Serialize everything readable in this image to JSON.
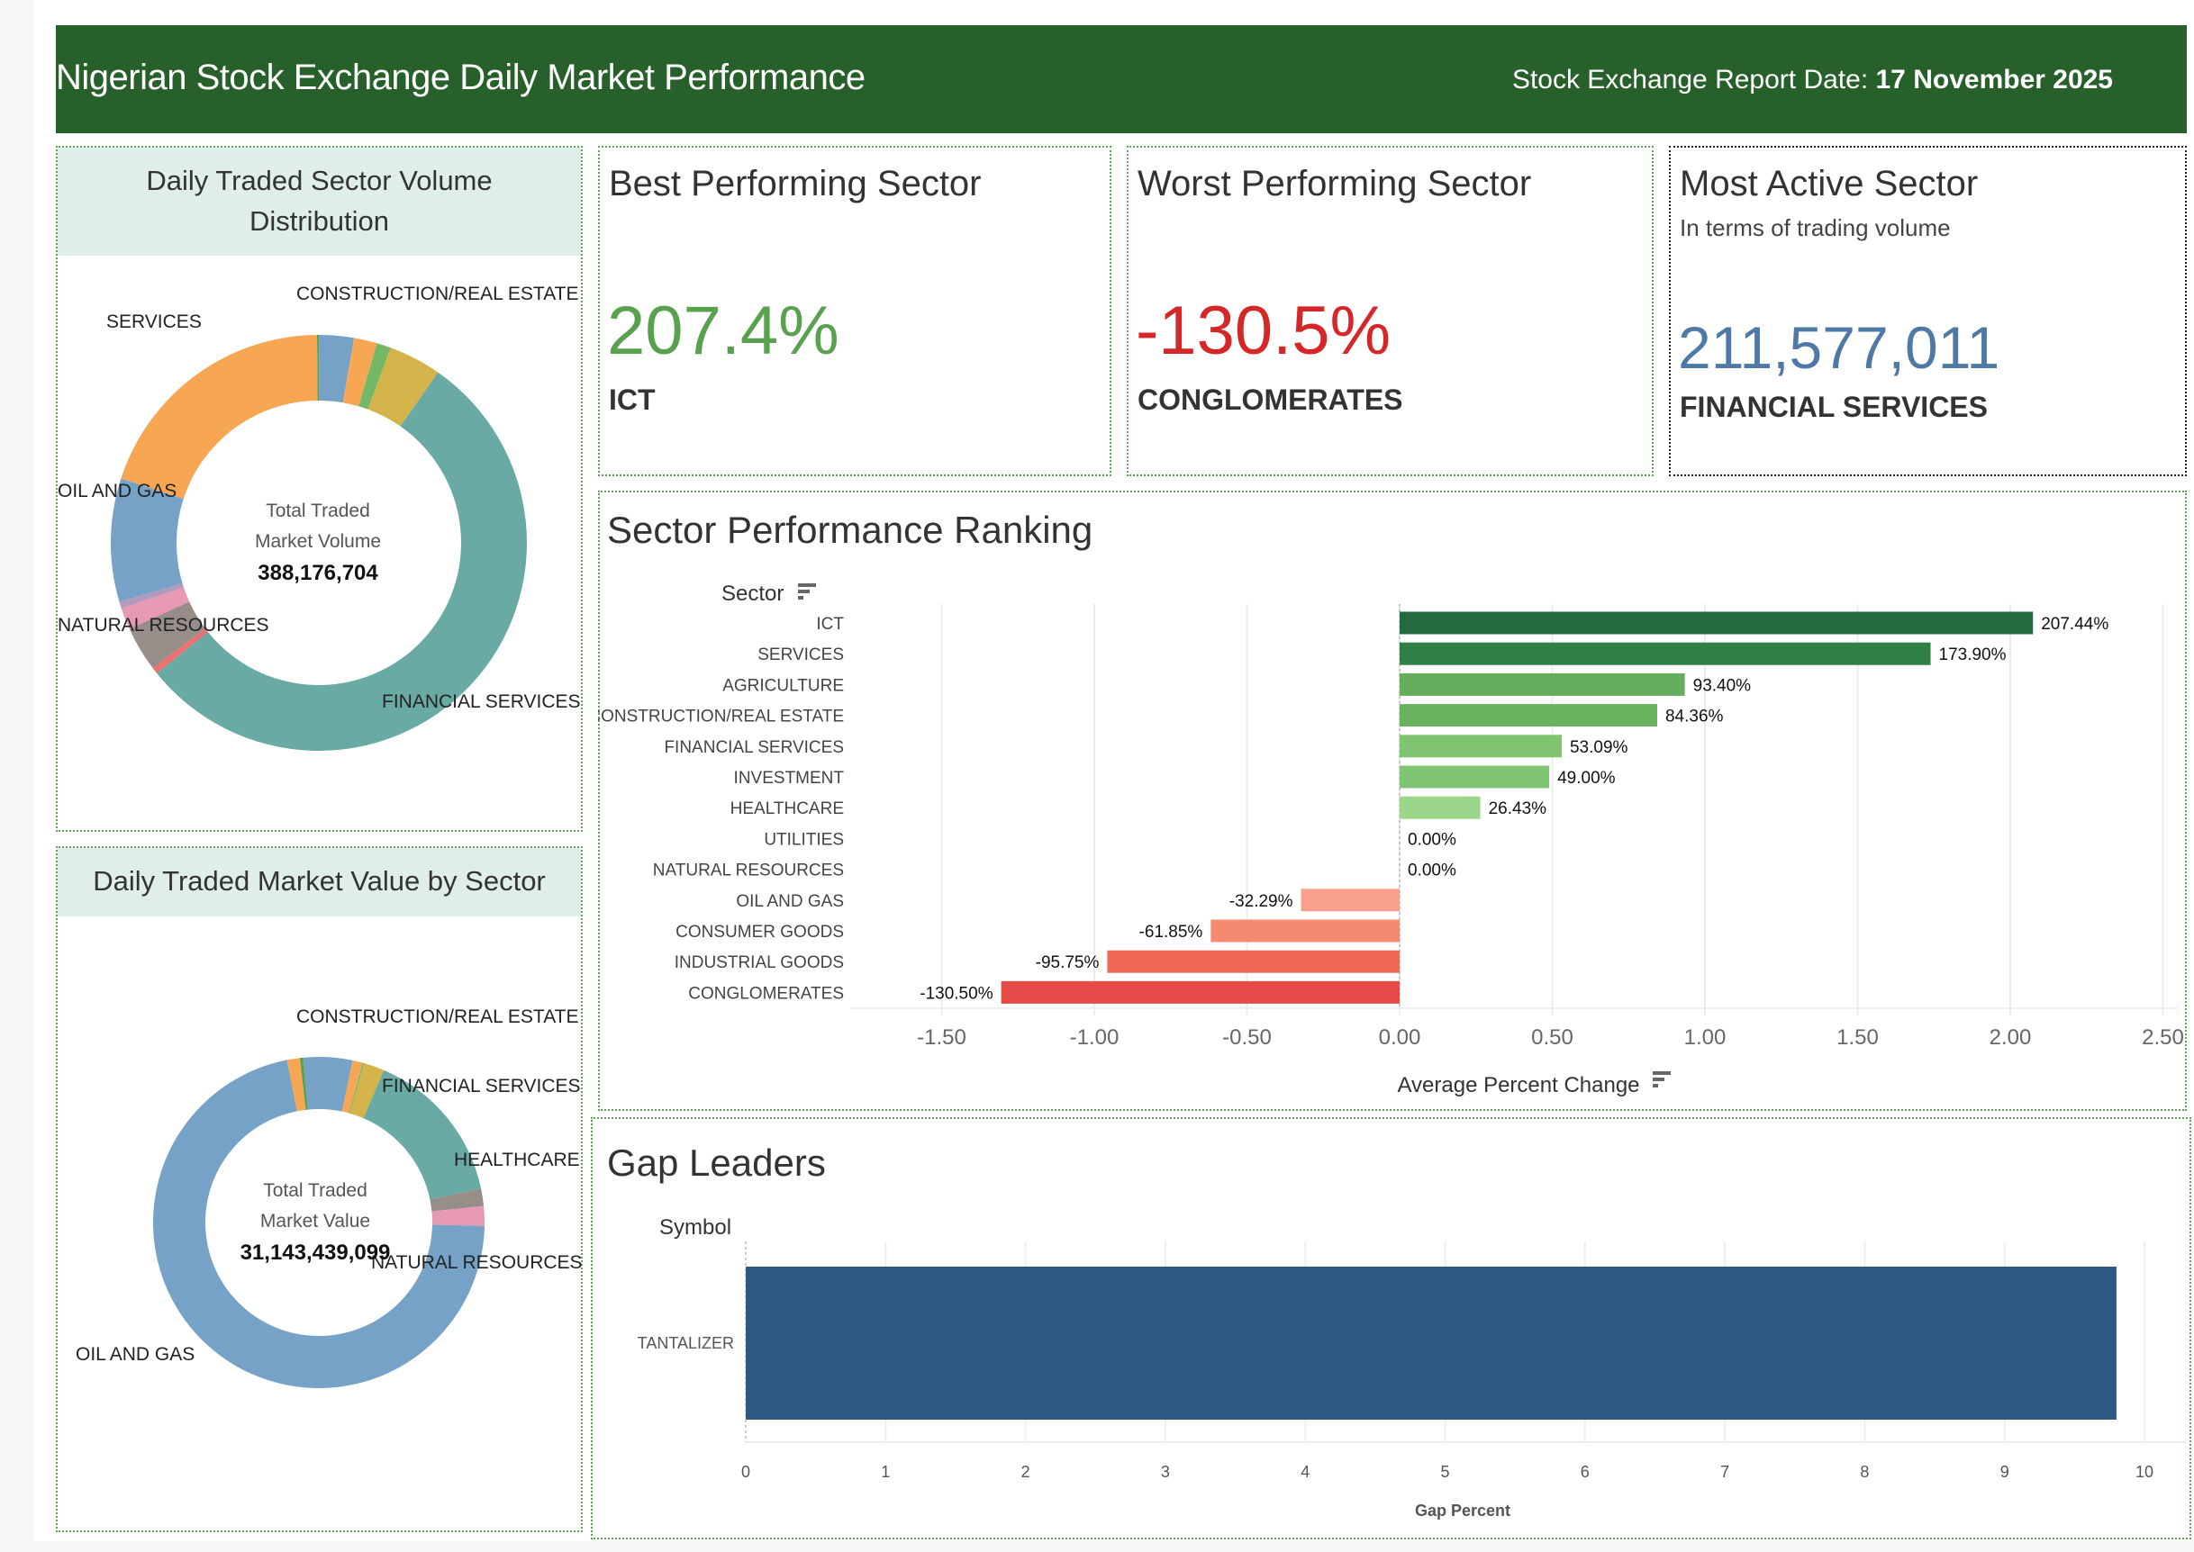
{
  "header": {
    "title": "Nigerian Stock Exchange Daily Market Performance",
    "date_label": "Stock Exchange Report Date:",
    "date_value": "17 November 2025",
    "color": "#28602b"
  },
  "volume_panel": {
    "title": "Daily Traded Sector Volume Distribution",
    "center_line1": "Total Traded",
    "center_line2": "Market Volume",
    "center_value": "388,176,704"
  },
  "value_panel": {
    "title": "Daily Traded Market Value by Sector",
    "center_line1": "Total Traded",
    "center_line2": "Market Value",
    "center_value": "31,143,439,099"
  },
  "kpis": {
    "best": {
      "title": "Best Performing Sector",
      "value": "207.4%",
      "sector": "ICT",
      "color": "#59a14f"
    },
    "worst": {
      "title": "Worst Performing Sector",
      "value": "-130.5%",
      "sector": "CONGLOMERATES",
      "color": "#d62728"
    },
    "active": {
      "title": "Most Active Sector",
      "subtitle": "In terms of trading volume",
      "value": "211,577,011",
      "sector": "FINANCIAL SERVICES",
      "color": "#4e79a7"
    }
  },
  "ranking": {
    "title": "Sector Performance Ranking"
  },
  "gap": {
    "title": "Gap Leaders"
  },
  "chart_data": [
    {
      "type": "pie",
      "title": "Daily Traded Sector Volume Distribution",
      "unit": "percent share (estimated)",
      "slices": [
        {
          "label": "",
          "value": 0.15,
          "color": "#59a14f"
        },
        {
          "label": "",
          "value": 2.7,
          "color": "#76a2c8"
        },
        {
          "label": "",
          "value": 1.8,
          "color": "#f7a754"
        },
        {
          "label": "",
          "value": 1.1,
          "color": "#74b867"
        },
        {
          "label": "CONSTRUCTION/REAL ESTATE",
          "value": 4.1,
          "color": "#d4b34b"
        },
        {
          "label": "FINANCIAL SERVICES",
          "value": 54.5,
          "color": "#6aaaa4"
        },
        {
          "label": "",
          "value": 0.5,
          "color": "#ea7272"
        },
        {
          "label": "NATURAL RESOURCES",
          "value": 3.5,
          "color": "#978d89"
        },
        {
          "label": "",
          "value": 1.7,
          "color": "#e798b3"
        },
        {
          "label": "",
          "value": 0.5,
          "color": "#b39abd"
        },
        {
          "label": "OIL AND GAS",
          "value": 9.6,
          "color": "#76a2c8"
        },
        {
          "label": "SERVICES",
          "value": 19.85,
          "color": "#f7a754"
        }
      ]
    },
    {
      "type": "pie",
      "title": "Daily Traded Market Value by Sector",
      "unit": "percent share (estimated)",
      "slices": [
        {
          "label": "",
          "value": 4.8,
          "color": "#76a2c8"
        },
        {
          "label": "",
          "value": 1.0,
          "color": "#f7a754"
        },
        {
          "label": "",
          "value": 0.15,
          "color": "#74b867"
        },
        {
          "label": "CONSTRUCTION/REAL ESTATE",
          "value": 2.0,
          "color": "#d4b34b"
        },
        {
          "label": "FINANCIAL SERVICES",
          "value": 15.3,
          "color": "#6aaaa4"
        },
        {
          "label": "HEALTHCARE",
          "value": 1.7,
          "color": "#978d89"
        },
        {
          "label": "NATURAL RESOURCES",
          "value": 1.9,
          "color": "#e798b3"
        },
        {
          "label": "OIL AND GAS",
          "value": 71.6,
          "color": "#76a2c8"
        },
        {
          "label": "",
          "value": 1.25,
          "color": "#f7a754"
        },
        {
          "label": "",
          "value": 0.3,
          "color": "#59a14f"
        }
      ]
    },
    {
      "type": "bar",
      "orientation": "horizontal",
      "title": "Sector Performance Ranking",
      "ylabel": "Sector",
      "xlabel": "Average Percent Change",
      "xlim": [
        -1.8,
        2.55
      ],
      "xticks": [
        "-1.50",
        "-1.00",
        "-0.50",
        "0.00",
        "0.50",
        "1.00",
        "1.50",
        "2.00",
        "2.50"
      ],
      "xtick_values": [
        -1.5,
        -1.0,
        -0.5,
        0,
        0.5,
        1.0,
        1.5,
        2.0,
        2.5
      ],
      "categories": [
        "ICT",
        "SERVICES",
        "AGRICULTURE",
        "CONSTRUCTION/REAL ESTATE",
        "FINANCIAL SERVICES",
        "INVESTMENT",
        "HEALTHCARE",
        "UTILITIES",
        "NATURAL RESOURCES",
        "OIL AND GAS",
        "CONSUMER GOODS",
        "INDUSTRIAL GOODS",
        "CONGLOMERATES"
      ],
      "values": [
        2.0744,
        1.739,
        0.934,
        0.8436,
        0.5309,
        0.49,
        0.2643,
        0,
        0,
        -0.3229,
        -0.6185,
        -0.9575,
        -1.305
      ],
      "labels": [
        "207.44%",
        "173.90%",
        "93.40%",
        "84.36%",
        "53.09%",
        "49.00%",
        "26.43%",
        "0.00%",
        "0.00%",
        "-32.29%",
        "-61.85%",
        "-95.75%",
        "-130.50%"
      ],
      "colors": [
        "#236a3e",
        "#2e8045",
        "#64ad5c",
        "#6ab25f",
        "#7fc46f",
        "#80c573",
        "#9bd68a",
        "#9bd68a",
        "#9bd68a",
        "#f8a08c",
        "#f58a72",
        "#ef6954",
        "#e44a46"
      ],
      "grid": true
    },
    {
      "type": "bar",
      "orientation": "horizontal",
      "title": "Gap Leaders",
      "ylabel": "Symbol",
      "xlabel": "Gap Percent",
      "xlim": [
        0,
        10.3
      ],
      "xticks": [
        "0",
        "1",
        "2",
        "3",
        "4",
        "5",
        "6",
        "7",
        "8",
        "9",
        "10"
      ],
      "xtick_values": [
        0,
        1,
        2,
        3,
        4,
        5,
        6,
        7,
        8,
        9,
        10
      ],
      "categories": [
        "TANTALIZER"
      ],
      "values": [
        9.8
      ],
      "colors": [
        "#2c5882"
      ],
      "grid": true
    }
  ]
}
